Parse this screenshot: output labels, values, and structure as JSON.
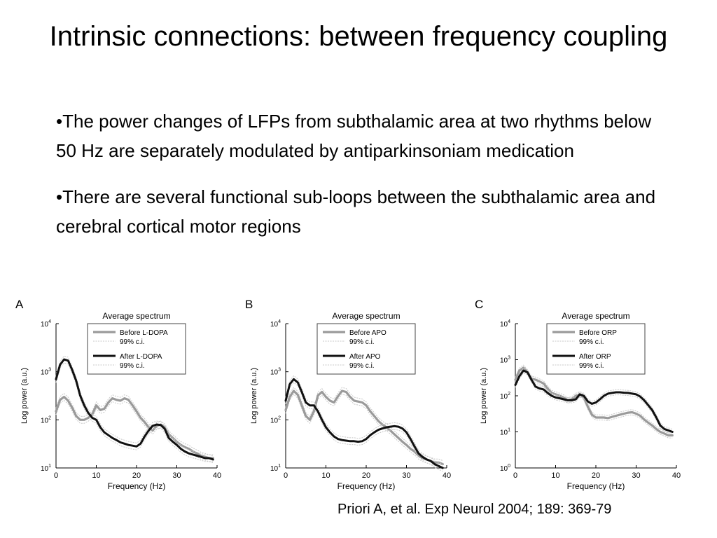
{
  "title": "Intrinsic connections: between frequency coupling",
  "bullets": [
    "•The power changes of LFPs from subthalamic area at two rhythms below 50 Hz are separately modulated by antiparkinsoniam medication",
    "•There are several functional sub-loops between the subthalamic area and cerebral cortical motor regions"
  ],
  "citation": "Priori A, et al. Exp Neurol 2004; 189: 369-79",
  "colors": {
    "before": "#9a9a9a",
    "after": "#111111",
    "ci": "#c8c8c8"
  },
  "chart_data": [
    {
      "type": "line",
      "panel_label": "A",
      "title": "Average spectrum",
      "xlabel": "Frequency (Hz)",
      "ylabel": "Log power (a.u.)",
      "xlim": [
        0,
        40
      ],
      "xticks": [
        "0",
        "10",
        "20",
        "30",
        "40"
      ],
      "yscale": "log",
      "ylim_exp": [
        1,
        4
      ],
      "yticks": [
        {
          "base": "10",
          "exp": "1"
        },
        {
          "base": "10",
          "exp": "2"
        },
        {
          "base": "10",
          "exp": "3"
        },
        {
          "base": "10",
          "exp": "4"
        }
      ],
      "legend_position": "top-right",
      "legend": [
        "Before L-DOPA",
        "99% c.i.",
        "After L-DOPA",
        "99% c.i."
      ],
      "x": [
        0,
        1,
        2,
        3,
        4,
        5,
        6,
        7,
        8,
        9,
        10,
        11,
        12,
        13,
        14,
        15,
        16,
        17,
        18,
        19,
        20,
        21,
        22,
        23,
        24,
        25,
        26,
        27,
        28,
        29,
        30,
        31,
        32,
        33,
        34,
        35,
        36,
        37,
        38,
        39
      ],
      "series": [
        {
          "name": "Before L-DOPA",
          "values": [
            150,
            260,
            300,
            250,
            180,
            120,
            100,
            100,
            110,
            130,
            200,
            160,
            170,
            230,
            280,
            260,
            250,
            280,
            260,
            200,
            150,
            110,
            90,
            70,
            60,
            75,
            80,
            70,
            50,
            42,
            35,
            30,
            27,
            25,
            22,
            20,
            18,
            17,
            16,
            16
          ]
        },
        {
          "name": "After L-DOPA",
          "values": [
            700,
            1400,
            1800,
            1700,
            1100,
            650,
            320,
            200,
            140,
            110,
            100,
            70,
            55,
            48,
            42,
            38,
            34,
            32,
            30,
            29,
            28,
            32,
            45,
            60,
            75,
            80,
            78,
            65,
            42,
            35,
            30,
            25,
            22,
            20,
            19,
            18,
            17,
            16,
            16,
            15
          ]
        }
      ]
    },
    {
      "type": "line",
      "panel_label": "B",
      "title": "Average spectrum",
      "xlabel": "Frequency (Hz)",
      "ylabel": "Log power (a.u.)",
      "xlim": [
        0,
        40
      ],
      "xticks": [
        "0",
        "10",
        "20",
        "30",
        "40"
      ],
      "yscale": "log",
      "ylim_exp": [
        1,
        4
      ],
      "yticks": [
        {
          "base": "10",
          "exp": "1"
        },
        {
          "base": "10",
          "exp": "2"
        },
        {
          "base": "10",
          "exp": "3"
        },
        {
          "base": "10",
          "exp": "4"
        }
      ],
      "legend_position": "top-right",
      "legend": [
        "Before APO",
        "99% c.i.",
        "After APO",
        "99% c.i."
      ],
      "x": [
        0,
        1,
        2,
        3,
        4,
        5,
        6,
        7,
        8,
        9,
        10,
        11,
        12,
        13,
        14,
        15,
        16,
        17,
        18,
        19,
        20,
        21,
        22,
        23,
        24,
        25,
        26,
        27,
        28,
        29,
        30,
        31,
        32,
        33,
        34,
        35,
        36,
        37,
        38,
        39
      ],
      "series": [
        {
          "name": "Before APO",
          "values": [
            160,
            300,
            400,
            330,
            200,
            120,
            100,
            150,
            320,
            380,
            300,
            250,
            230,
            310,
            400,
            380,
            300,
            250,
            240,
            230,
            200,
            150,
            120,
            95,
            80,
            70,
            60,
            50,
            42,
            35,
            30,
            25,
            22,
            18,
            16,
            15,
            14,
            13,
            13,
            12
          ]
        },
        {
          "name": "After APO",
          "values": [
            250,
            550,
            700,
            600,
            380,
            230,
            200,
            200,
            150,
            100,
            70,
            55,
            45,
            40,
            38,
            37,
            36,
            36,
            35,
            36,
            40,
            48,
            55,
            62,
            66,
            70,
            72,
            74,
            72,
            66,
            55,
            40,
            28,
            20,
            17,
            15,
            14,
            12,
            11,
            10
          ]
        }
      ]
    },
    {
      "type": "line",
      "panel_label": "C",
      "title": "Average spectrum",
      "xlabel": "Frequency (Hz)",
      "ylabel": "Log power (a.u.)",
      "xlim": [
        0,
        40
      ],
      "xticks": [
        "0",
        "10",
        "20",
        "30",
        "40"
      ],
      "yscale": "log",
      "ylim_exp": [
        0,
        4
      ],
      "yticks": [
        {
          "base": "10",
          "exp": "0"
        },
        {
          "base": "10",
          "exp": "1"
        },
        {
          "base": "10",
          "exp": "2"
        },
        {
          "base": "10",
          "exp": "3"
        },
        {
          "base": "10",
          "exp": "4"
        }
      ],
      "legend_position": "top-right",
      "legend": [
        "Before ORP",
        "99% c.i.",
        "After ORP",
        "99% c.i."
      ],
      "x": [
        0,
        1,
        2,
        3,
        4,
        5,
        6,
        7,
        8,
        9,
        10,
        11,
        12,
        13,
        14,
        15,
        16,
        17,
        18,
        19,
        20,
        21,
        22,
        23,
        24,
        25,
        26,
        27,
        28,
        29,
        30,
        31,
        32,
        33,
        34,
        35,
        36,
        37,
        38,
        39
      ],
      "series": [
        {
          "name": "Before ORP",
          "values": [
            280,
            500,
            600,
            450,
            300,
            280,
            250,
            220,
            160,
            120,
            110,
            100,
            90,
            75,
            80,
            100,
            110,
            90,
            50,
            30,
            25,
            25,
            25,
            24,
            26,
            28,
            30,
            32,
            34,
            35,
            32,
            28,
            22,
            18,
            15,
            12,
            10,
            9,
            8,
            8
          ]
        },
        {
          "name": "After ORP",
          "values": [
            200,
            350,
            500,
            450,
            280,
            180,
            160,
            150,
            120,
            100,
            90,
            85,
            80,
            75,
            75,
            80,
            110,
            100,
            70,
            60,
            65,
            80,
            100,
            115,
            120,
            125,
            125,
            122,
            120,
            115,
            110,
            95,
            75,
            55,
            40,
            25,
            15,
            12,
            11,
            10
          ]
        }
      ]
    }
  ]
}
